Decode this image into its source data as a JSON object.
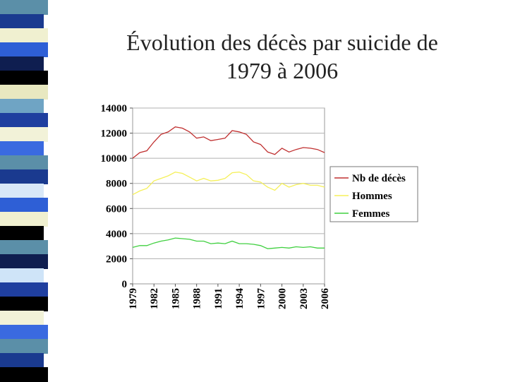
{
  "slide": {
    "title_line1": "Évolution des décès par suicide de",
    "title_line2": "1979 à 2006",
    "stripe_colors": [
      "#5b8fa8",
      "#1a3a8f",
      "#f0f0d0",
      "#2e5fd6",
      "#0f1e50",
      "#000000",
      "#e8e8c0",
      "#6fa4c4",
      "#1f3f9f",
      "#f2f2d8",
      "#3a6ae0",
      "#5b8fa8",
      "#1a3a8f",
      "#d8e8f8",
      "#2e5fd6",
      "#f0f0d0",
      "#000000",
      "#5b8fa8",
      "#0f1e50",
      "#cfe4f8",
      "#1f3f9f",
      "#000000",
      "#f2f2d8",
      "#3a6ae0",
      "#5b8fa8",
      "#1a3a8f",
      "#000000"
    ]
  },
  "chart_data": {
    "type": "line",
    "title": "",
    "xlabel": "",
    "ylabel": "",
    "x": [
      1979,
      1980,
      1981,
      1982,
      1983,
      1984,
      1985,
      1986,
      1987,
      1988,
      1989,
      1990,
      1991,
      1992,
      1993,
      1994,
      1995,
      1996,
      1997,
      1998,
      1999,
      2000,
      2001,
      2002,
      2003,
      2004,
      2005,
      2006
    ],
    "x_tick_labels": [
      "1979",
      "1982",
      "1985",
      "1988",
      "1991",
      "1994",
      "1997",
      "2000",
      "2003",
      "2006"
    ],
    "y_tick_labels": [
      "14000",
      "12000",
      "10000",
      "8000",
      "6000",
      "4000",
      "2000",
      "0"
    ],
    "ylim": [
      0,
      14000
    ],
    "grid": "horizontal",
    "legend_position": "right",
    "series": [
      {
        "name": "Nb de décès",
        "color": "#c03030",
        "values": [
          10000,
          10450,
          10600,
          11300,
          11900,
          12100,
          12500,
          12400,
          12100,
          11600,
          11700,
          11400,
          11500,
          11600,
          12200,
          12100,
          11900,
          11300,
          11100,
          10500,
          10300,
          10800,
          10500,
          10700,
          10850,
          10800,
          10700,
          10450
        ]
      },
      {
        "name": "Hommes",
        "color": "#f5f05a",
        "values": [
          7100,
          7400,
          7600,
          8200,
          8400,
          8600,
          8900,
          8800,
          8500,
          8200,
          8400,
          8200,
          8250,
          8400,
          8850,
          8900,
          8700,
          8200,
          8100,
          7700,
          7450,
          8000,
          7700,
          7900,
          8000,
          7850,
          7850,
          7700
        ]
      },
      {
        "name": "Femmes",
        "color": "#40d040",
        "values": [
          2900,
          3050,
          3050,
          3250,
          3400,
          3500,
          3650,
          3600,
          3550,
          3400,
          3400,
          3200,
          3250,
          3200,
          3400,
          3200,
          3200,
          3150,
          3050,
          2800,
          2850,
          2900,
          2850,
          2950,
          2900,
          2950,
          2850,
          2850
        ]
      }
    ]
  }
}
